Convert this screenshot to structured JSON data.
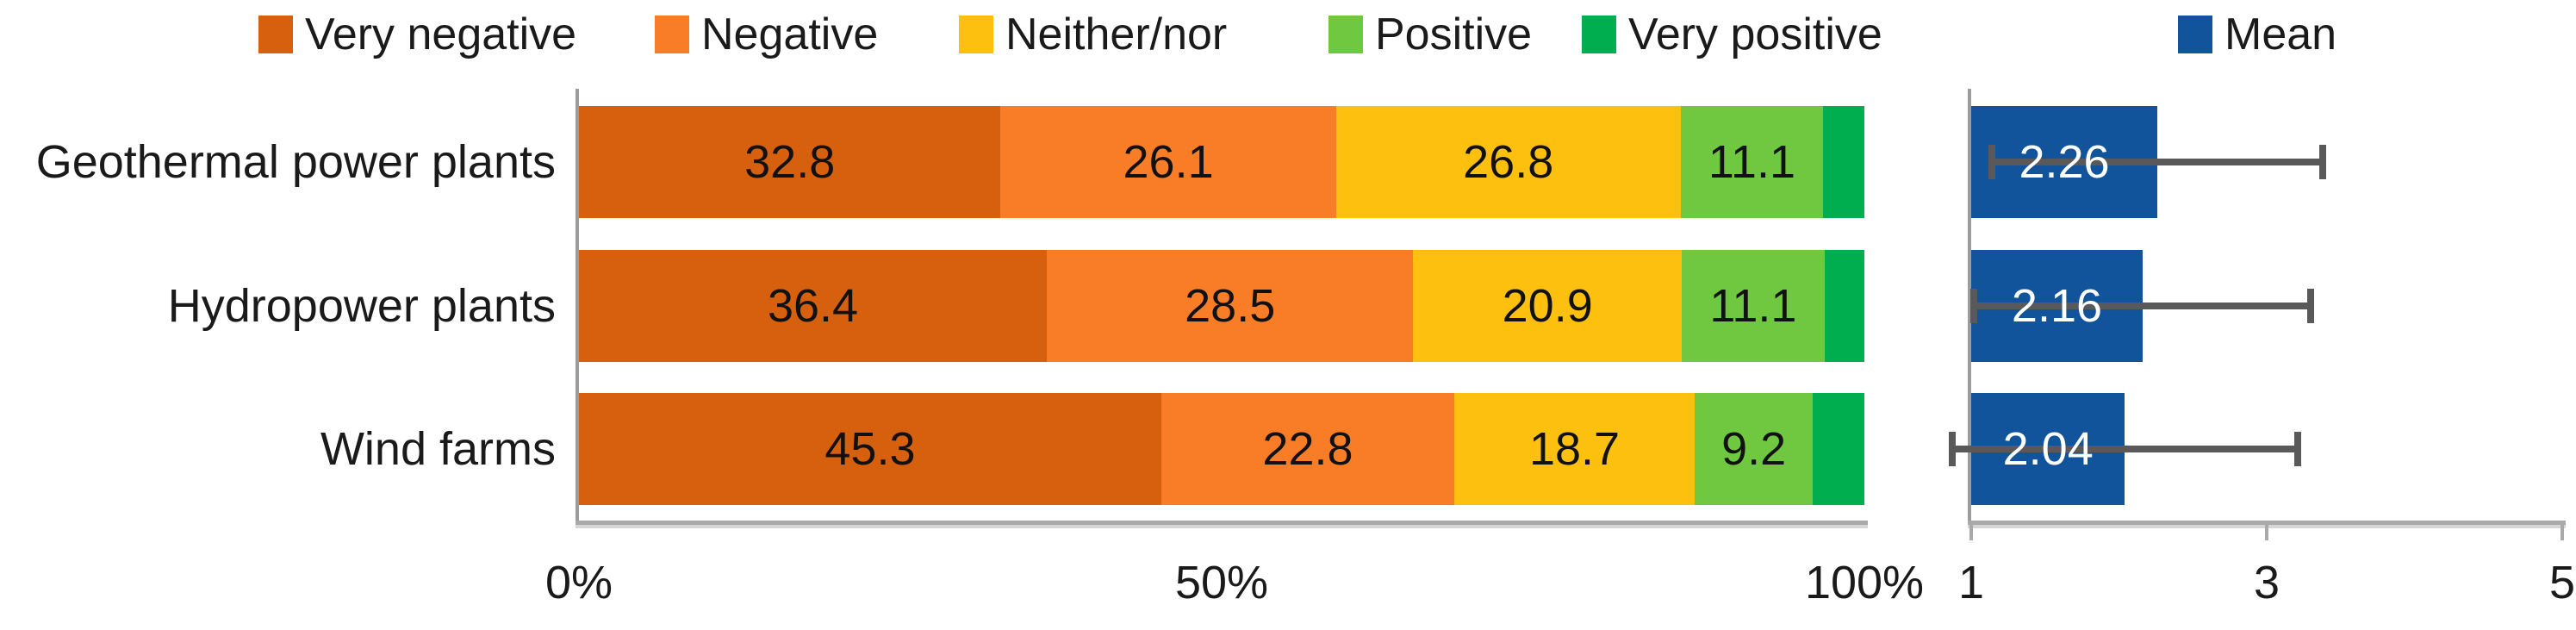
{
  "legend": {
    "items": [
      {
        "label": "Very negative",
        "color": "#D6600D"
      },
      {
        "label": "Negative",
        "color": "#F97D27"
      },
      {
        "label": "Neither/nor",
        "color": "#FEC00F"
      },
      {
        "label": "Positive",
        "color": "#70C840"
      },
      {
        "label": "Very positive",
        "color": "#00AE4F"
      }
    ],
    "mean": {
      "label": "Mean",
      "color": "#11549B"
    }
  },
  "chart_data": [
    {
      "type": "bar",
      "subtype": "stacked-horizontal-percent",
      "categories": [
        "Geothermal power plants",
        "Hydropower plants",
        "Wind farms"
      ],
      "series": [
        {
          "name": "Very negative",
          "color": "#D6600D",
          "values": [
            32.8,
            36.4,
            45.3
          ]
        },
        {
          "name": "Negative",
          "color": "#F97D27",
          "values": [
            26.1,
            28.5,
            22.8
          ]
        },
        {
          "name": "Neither/nor",
          "color": "#FEC00F",
          "values": [
            26.8,
            20.9,
            18.7
          ]
        },
        {
          "name": "Positive",
          "color": "#70C840",
          "values": [
            11.1,
            11.1,
            9.2
          ]
        },
        {
          "name": "Very positive",
          "color": "#00AE4F",
          "values": [
            3.2,
            3.1,
            4.0
          ]
        }
      ],
      "data_label_min_value": 5,
      "xlim": [
        0,
        100
      ],
      "xticks": [
        {
          "value": 0,
          "label": "0%"
        },
        {
          "value": 50,
          "label": "50%"
        },
        {
          "value": 100,
          "label": "100%"
        }
      ],
      "grid": false,
      "legend_position": "top"
    },
    {
      "type": "bar",
      "subtype": "horizontal-with-error-bars",
      "series_name": "Mean",
      "categories": [
        "Geothermal power plants",
        "Hydropower plants",
        "Wind farms"
      ],
      "values": [
        2.26,
        2.16,
        2.04
      ],
      "errors": [
        1.12,
        1.14,
        1.17
      ],
      "bar_color": "#11549B",
      "error_color": "#595959",
      "xlim": [
        1,
        5
      ],
      "xticks": [
        {
          "value": 1,
          "label": "1"
        },
        {
          "value": 3,
          "label": "3"
        },
        {
          "value": 5,
          "label": "5"
        }
      ],
      "grid": false
    }
  ]
}
